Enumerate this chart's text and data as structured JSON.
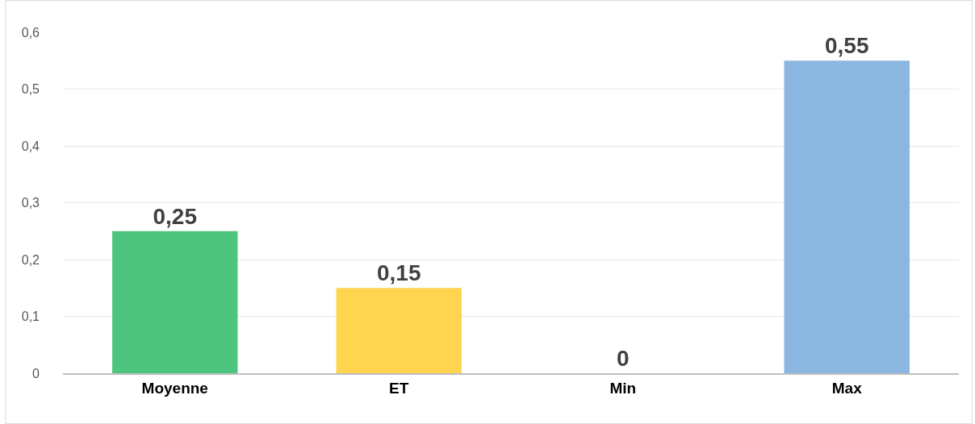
{
  "chart_data": {
    "type": "bar",
    "categories": [
      "Moyenne",
      "ET",
      "Min",
      "Max"
    ],
    "values": [
      0.25,
      0.15,
      0,
      0.55
    ],
    "colors": [
      "#4dc57f",
      "#ffd54f",
      "#8ab6e0",
      "#8ab6e0"
    ],
    "value_labels": [
      "0,25",
      "0,15",
      "0",
      "0,55"
    ],
    "ylim": [
      0,
      0.6
    ],
    "yticks": [
      0,
      {
        "value": 0.1,
        "label": "0,1"
      },
      {
        "value": 0.2,
        "label": "0,2"
      },
      {
        "value": 0.3,
        "label": "0,3"
      },
      {
        "value": 0.4,
        "label": "0,4"
      },
      {
        "value": 0.5,
        "label": "0,5"
      },
      {
        "value": 0.6,
        "label": "0,6"
      }
    ],
    "grid": "y"
  }
}
